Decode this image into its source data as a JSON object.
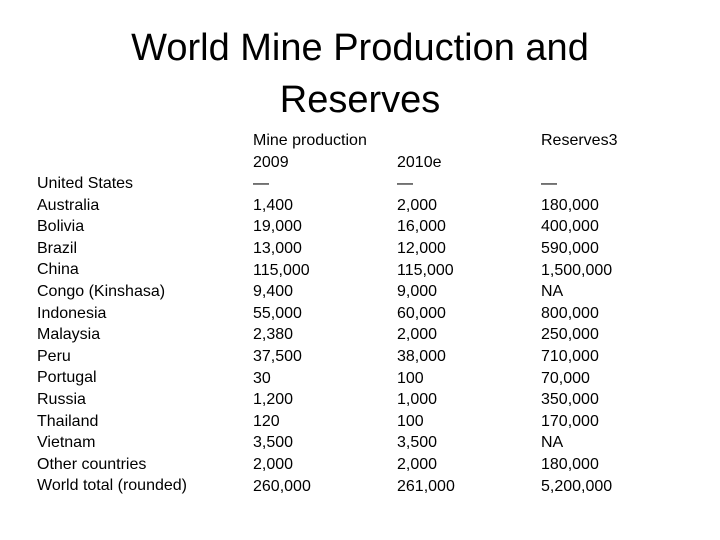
{
  "title_line1": "World Mine Production and",
  "title_line2": "Reserves",
  "headers": {
    "mine_production": "Mine production",
    "year_2009": "2009",
    "year_2010": "2010e",
    "reserves": "Reserves3"
  },
  "rows": [
    {
      "country": "United States",
      "prod_2009": "—",
      "prod_2010": "—",
      "reserves": "—"
    },
    {
      "country": "Australia",
      "prod_2009": "1,400",
      "prod_2010": "2,000",
      "reserves": "180,000"
    },
    {
      "country": "Bolivia",
      "prod_2009": "19,000",
      "prod_2010": "16,000",
      "reserves": "400,000"
    },
    {
      "country": "Brazil",
      "prod_2009": "13,000",
      "prod_2010": "12,000",
      "reserves": "590,000"
    },
    {
      "country": "China",
      "prod_2009": "115,000",
      "prod_2010": "115,000",
      "reserves": "1,500,000"
    },
    {
      "country": "Congo (Kinshasa)",
      "prod_2009": "9,400",
      "prod_2010": "9,000",
      "reserves": "NA"
    },
    {
      "country": "Indonesia",
      "prod_2009": "55,000",
      "prod_2010": "60,000",
      "reserves": "800,000"
    },
    {
      "country": "Malaysia",
      "prod_2009": "2,380",
      "prod_2010": "2,000",
      "reserves": "250,000"
    },
    {
      "country": "Peru",
      "prod_2009": "37,500",
      "prod_2010": "38,000",
      "reserves": "710,000"
    },
    {
      "country": "Portugal",
      "prod_2009": "30",
      "prod_2010": "100",
      "reserves": "70,000"
    },
    {
      "country": "Russia",
      "prod_2009": "1,200",
      "prod_2010": "1,000",
      "reserves": "350,000"
    },
    {
      "country": "Thailand",
      "prod_2009": "120",
      "prod_2010": "100",
      "reserves": "170,000"
    },
    {
      "country": "Vietnam",
      "prod_2009": "3,500",
      "prod_2010": "3,500",
      "reserves": "NA"
    },
    {
      "country": "Other countries",
      "prod_2009": "2,000",
      "prod_2010": "2,000",
      "reserves": "180,000"
    },
    {
      "country": "World total (rounded)",
      "prod_2009": "260,000",
      "prod_2010": "261,000",
      "reserves": "5,200,000"
    }
  ]
}
